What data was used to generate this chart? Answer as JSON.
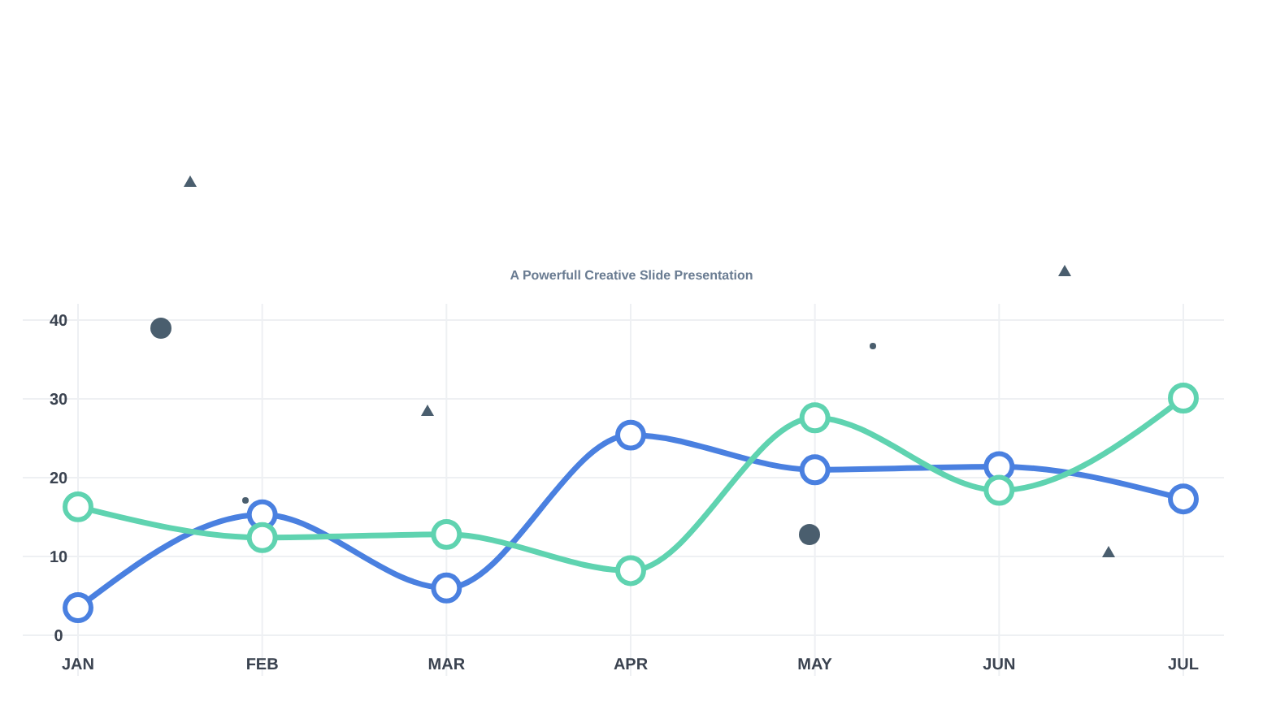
{
  "chart_data": {
    "type": "line",
    "subtitle": "A Powerfull Creative Slide Presentation",
    "categories": [
      "JAN",
      "FEB",
      "MAR",
      "APR",
      "MAY",
      "JUN",
      "JUL"
    ],
    "series": [
      {
        "color": "#4a80e0",
        "values": [
          3.5,
          15.3,
          6,
          25.4,
          21,
          21.4,
          17.3
        ]
      },
      {
        "color": "#5fd3b0",
        "values": [
          16.3,
          12.4,
          12.8,
          8.2,
          27.6,
          18.4,
          30.1
        ]
      }
    ],
    "ylim": [
      0,
      40
    ],
    "yticks": [
      0,
      10,
      20,
      30,
      40
    ],
    "grid": true,
    "marker": "circle",
    "line_style": "solid"
  }
}
